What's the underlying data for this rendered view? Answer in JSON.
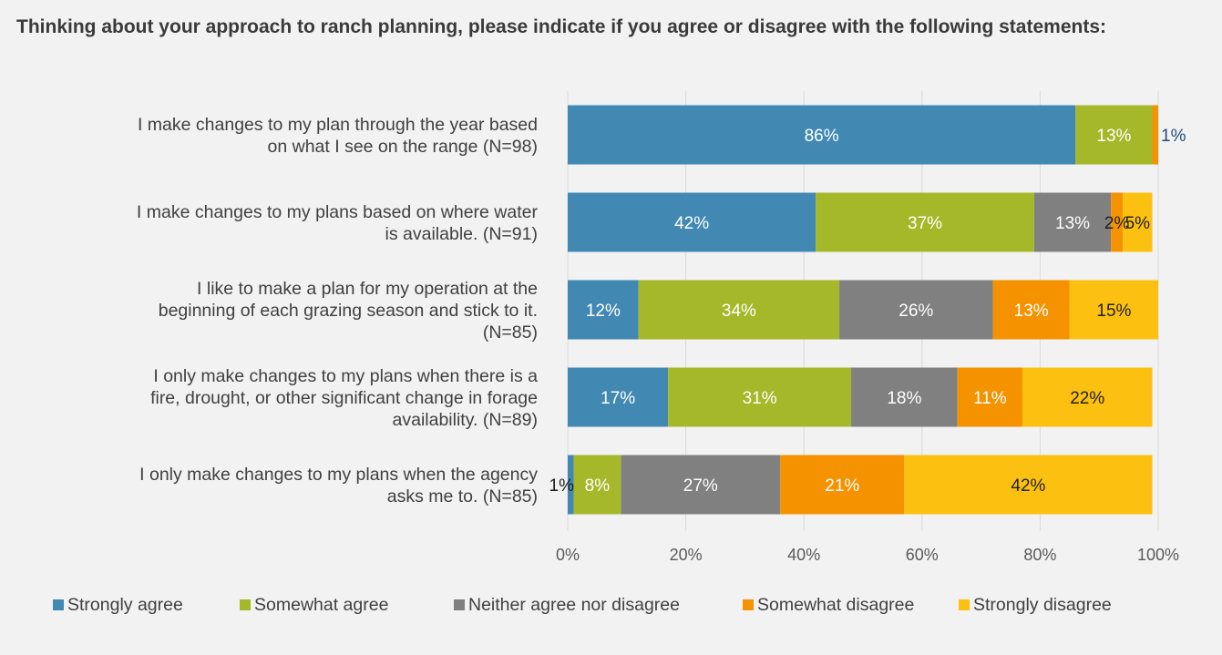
{
  "chart_data": {
    "type": "bar",
    "orientation": "horizontal",
    "stacked": true,
    "title": "Thinking about your approach to ranch planning, please indicate if you agree or disagree with the following statements:",
    "categories": [
      [
        "I make changes to my plan through the year based",
        "on what I see on the range (N=98)"
      ],
      [
        "I make changes to my plans based on where water",
        "is available. (N=91)"
      ],
      [
        "I like to make a plan for my operation at the",
        "beginning of each grazing season and stick to it.",
        "(N=85)"
      ],
      [
        "I only make changes to my plans when there is a",
        "fire, drought, or other significant change in forage",
        "availability. (N=89)"
      ],
      [
        "I only make changes to my plans when the agency",
        "asks me to. (N=85)"
      ]
    ],
    "series": [
      {
        "name": "Strongly agree",
        "color": "#4189b3",
        "values": [
          86,
          42,
          12,
          17,
          1
        ],
        "labels": [
          "86%",
          "42%",
          "12%",
          "17%",
          "1%"
        ]
      },
      {
        "name": "Somewhat agree",
        "color": "#a5b82a",
        "values": [
          13,
          37,
          34,
          31,
          8
        ],
        "labels": [
          "13%",
          "37%",
          "34%",
          "31%",
          "8%"
        ]
      },
      {
        "name": "Neither agree nor disagree",
        "color": "#808080",
        "values": [
          0,
          13,
          26,
          18,
          27
        ],
        "labels": [
          "",
          "13%",
          "26%",
          "18%",
          "27%"
        ]
      },
      {
        "name": "Somewhat disagree",
        "color": "#f59200",
        "values": [
          1,
          2,
          13,
          11,
          21
        ],
        "labels": [
          "1%",
          "2%",
          "13%",
          "11%",
          "21%"
        ]
      },
      {
        "name": "Strongly disagree",
        "color": "#fcc110",
        "values": [
          0,
          5,
          15,
          22,
          42
        ],
        "labels": [
          "",
          "5%",
          "15%",
          "22%",
          "42%"
        ]
      }
    ],
    "xlim": [
      0,
      100
    ],
    "xticks": [
      "0%",
      "20%",
      "40%",
      "60%",
      "80%",
      "100%"
    ],
    "grid": true,
    "legend_position": "bottom"
  }
}
